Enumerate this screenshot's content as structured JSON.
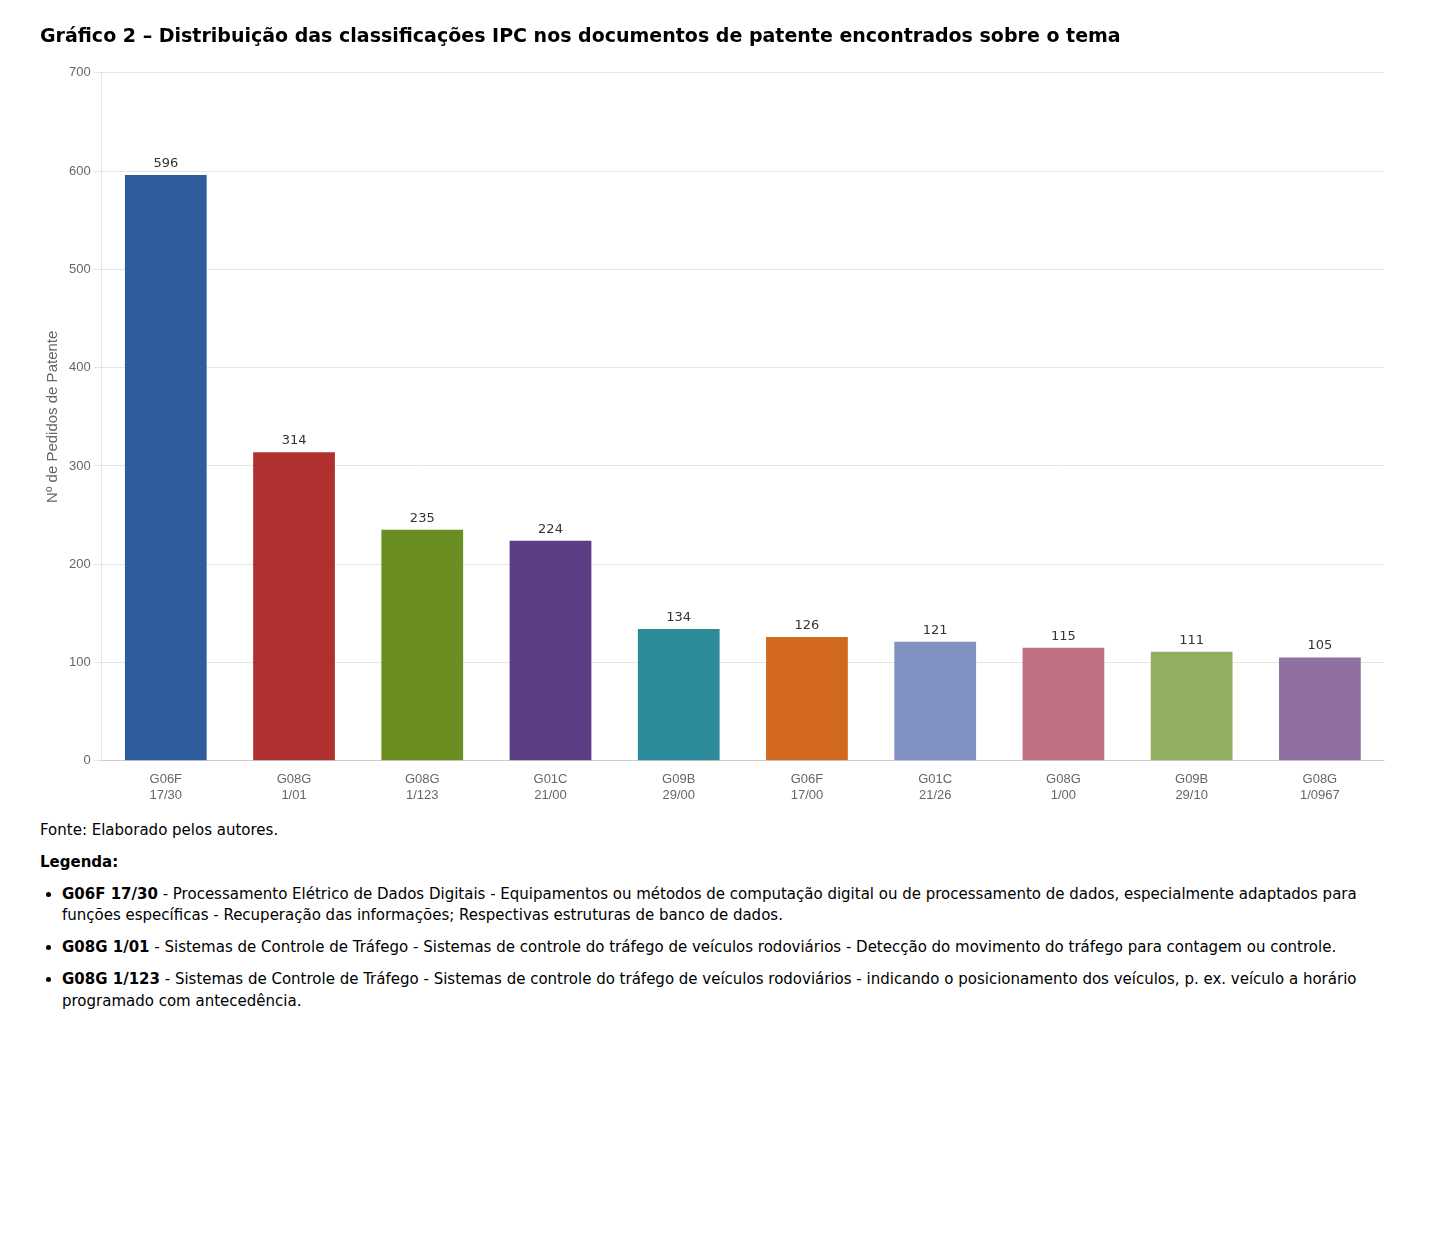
{
  "chart_data": {
    "type": "bar",
    "title": "Gráfico 2 – Distribuição das classificações IPC nos documentos de patente encontrados sobre o tema",
    "categories": [
      "G06F\n17/30",
      "G08G\n1/01",
      "G08G\n1/123",
      "G01C\n21/00",
      "G09B\n29/00",
      "G06F\n17/00",
      "G01C\n21/26",
      "G08G\n1/00",
      "G09B\n29/10",
      "G08G\n1/0967"
    ],
    "values": [
      596,
      314,
      235,
      224,
      134,
      126,
      121,
      115,
      111,
      105
    ],
    "colors": [
      "#2e5c9c",
      "#b03030",
      "#6b8e23",
      "#5a3f85",
      "#2e8b9a",
      "#d2691e",
      "#8090c0",
      "#c07080",
      "#90b060",
      "#9070a0"
    ],
    "ylabel": "Nº de Pedidos de Patente",
    "ylim": [
      0,
      700
    ],
    "yticks": [
      0,
      100,
      200,
      300,
      400,
      500,
      600,
      700
    ],
    "grid": true,
    "data_labels": true,
    "legend": false,
    "annotations": [
      "Fonte: Elaborado pelos autores.",
      "Legenda:",
      "G06F 17/30 - Processamento Elétrico de Dados Digitais - Equipamentos ou métodos de computação digital ou de processamento de dados, especialmente adaptados para funções específicas - Recuperação das informações; Respectivas estruturas de banco de dados.",
      "G08G 1/01 - Sistemas de Controle de Tráfego - Sistemas de controle do tráfego de veículos rodoviários - Detecção do movimento do tráfego para contagem ou controle.",
      "G08G 1/123 - Sistemas de Controle de Tráfego - Sistemas de controle do tráfego de veículos rodoviários - indicando o posicionamento dos veículos, p. ex. veículo a horário programado com antecedência."
    ]
  }
}
